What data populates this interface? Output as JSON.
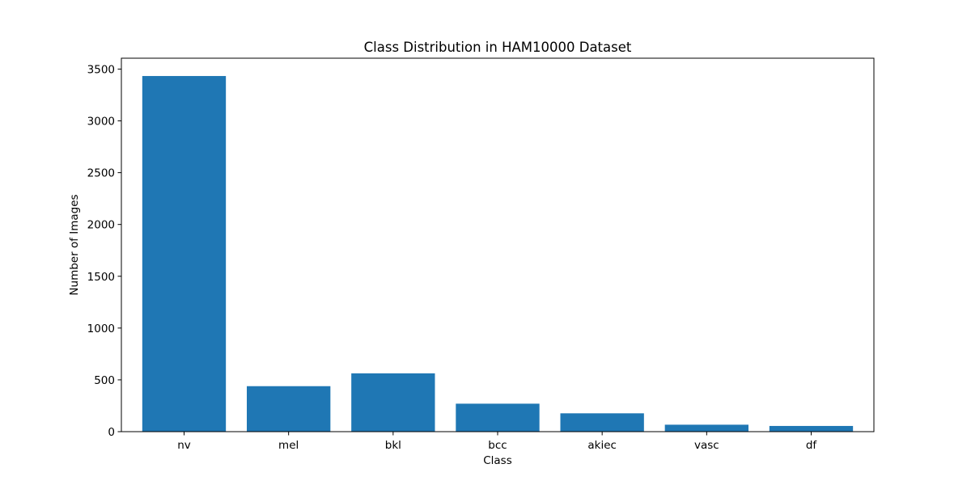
{
  "chart_data": {
    "type": "bar",
    "title": "Class Distribution in HAM10000 Dataset",
    "xlabel": "Class",
    "ylabel": "Number of Images",
    "categories": [
      "nv",
      "mel",
      "bkl",
      "bcc",
      "akiec",
      "vasc",
      "df"
    ],
    "values": [
      3433,
      439,
      563,
      270,
      177,
      67,
      55
    ],
    "ylim": [
      0,
      3605
    ],
    "yticks": [
      0,
      500,
      1000,
      1500,
      2000,
      2500,
      3000,
      3500
    ],
    "ytick_labels": [
      "0",
      "500",
      "1000",
      "1500",
      "2000",
      "2500",
      "3000",
      "3500"
    ],
    "bar_color": "#1f77b4",
    "grid": false,
    "legend": "none"
  }
}
